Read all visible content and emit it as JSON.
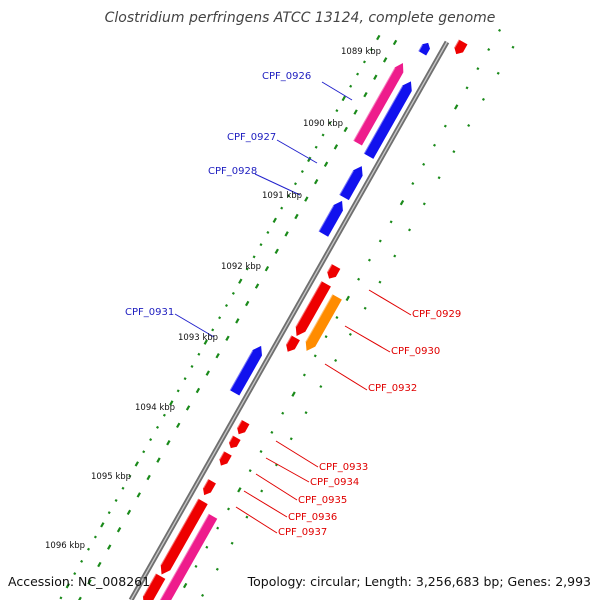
{
  "title": "Clostridium perfringens ATCC 13124, complete genome",
  "footer": {
    "accession": "Accession: NC_008261",
    "summary": "Topology: circular; Length: 3,256,683 bp; Genes: 2,993"
  },
  "ticks": [
    "1089 kbp",
    "1090 kbp",
    "1091 kbp",
    "1092 kbp",
    "1093 kbp",
    "1094 kbp",
    "1095 kbp",
    "1096 kbp"
  ],
  "genes": [
    {
      "id": "CPF_0926",
      "color": "blue"
    },
    {
      "id": "CPF_0927",
      "color": "blue"
    },
    {
      "id": "CPF_0928",
      "color": "blue"
    },
    {
      "id": "CPF_0929",
      "color": "red"
    },
    {
      "id": "CPF_0930",
      "color": "red"
    },
    {
      "id": "CPF_0931",
      "color": "blue"
    },
    {
      "id": "CPF_0932",
      "color": "red"
    },
    {
      "id": "CPF_0933",
      "color": "red"
    },
    {
      "id": "CPF_0934",
      "color": "red"
    },
    {
      "id": "CPF_0935",
      "color": "red"
    },
    {
      "id": "CPF_0936",
      "color": "red"
    },
    {
      "id": "CPF_0937",
      "color": "red"
    }
  ],
  "colors": {
    "forward_gene": "#1111ee",
    "reverse_gene": "#ee0000",
    "pink_feature": "#ee1c8c",
    "orange_feature": "#ff8c00",
    "backbone": "#8a8a8a",
    "gc_dots": "#1a8a1a"
  }
}
